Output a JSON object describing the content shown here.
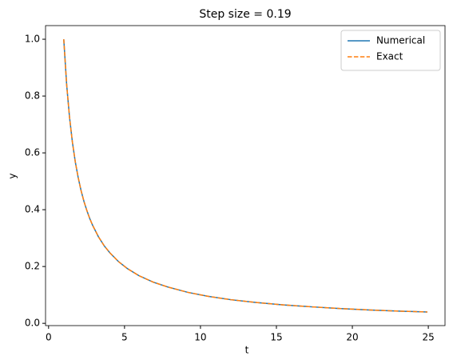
{
  "chart_data": {
    "type": "line",
    "title": "Step size = 0.19",
    "xlabel": "t",
    "ylabel": "y",
    "x": [
      1,
      1.19,
      1.38,
      1.57,
      1.76,
      1.95,
      2.14,
      2.33,
      2.52,
      2.71,
      2.9,
      3.28,
      3.66,
      4.04,
      4.61,
      5.18,
      5.94,
      6.89,
      7.84,
      9.17,
      10.5,
      12.02,
      13.54,
      15.44,
      17.34,
      19.24,
      21.14,
      23.04,
      24.94
    ],
    "series": [
      {
        "name": "Numerical",
        "color": "#1f77b4",
        "dash": false,
        "values": [
          1,
          0.84,
          0.725,
          0.637,
          0.568,
          0.513,
          0.467,
          0.429,
          0.397,
          0.369,
          0.345,
          0.305,
          0.273,
          0.248,
          0.217,
          0.193,
          0.168,
          0.145,
          0.128,
          0.109,
          0.095,
          0.083,
          0.074,
          0.065,
          0.058,
          0.052,
          0.047,
          0.043,
          0.04
        ]
      },
      {
        "name": "Exact",
        "color": "#ff7f0e",
        "dash": true,
        "values": [
          1,
          0.84,
          0.725,
          0.637,
          0.568,
          0.513,
          0.467,
          0.429,
          0.397,
          0.369,
          0.345,
          0.305,
          0.273,
          0.248,
          0.217,
          0.193,
          0.168,
          0.145,
          0.128,
          0.109,
          0.095,
          0.083,
          0.074,
          0.065,
          0.058,
          0.052,
          0.047,
          0.043,
          0.04
        ]
      }
    ],
    "xlim": [
      -0.2,
      26.1
    ],
    "xticks": [
      0,
      5,
      10,
      15,
      20,
      25
    ],
    "ylim": [
      -0.008,
      1.048
    ],
    "yticks": [
      {
        "value": 0,
        "label": "0.0"
      },
      0.2,
      0.4,
      0.6,
      0.8,
      {
        "value": 1,
        "label": "1.0"
      }
    ],
    "legend": "upper right",
    "grid": false
  }
}
